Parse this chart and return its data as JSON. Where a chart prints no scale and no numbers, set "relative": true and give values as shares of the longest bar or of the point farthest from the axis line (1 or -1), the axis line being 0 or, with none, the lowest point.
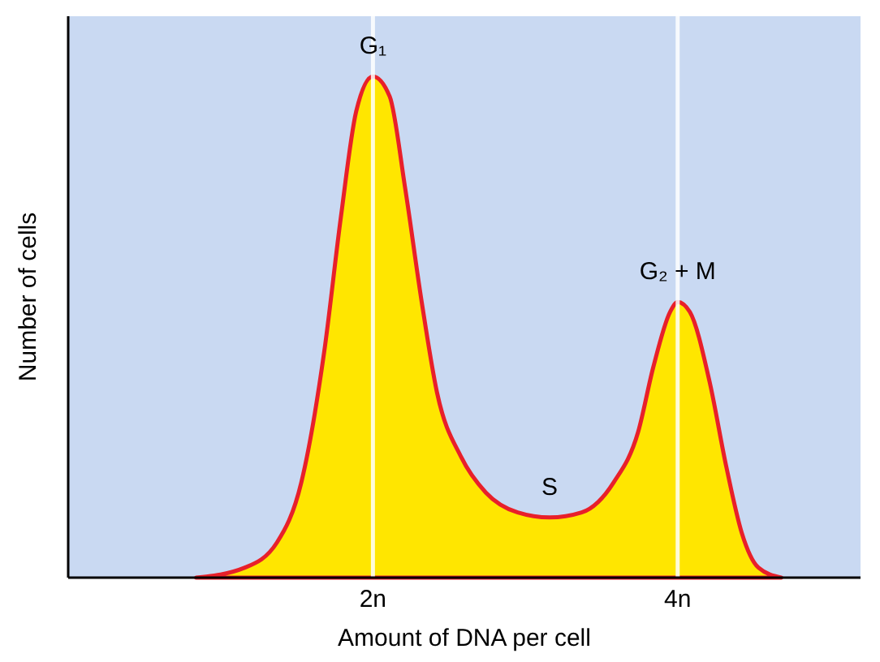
{
  "chart_data": {
    "type": "area",
    "relative": true,
    "xlabel": "Amount of DNA per cell",
    "ylabel": "Number of cells",
    "x": [
      0.84,
      1.16,
      1.37,
      1.53,
      1.68,
      1.79,
      1.89,
      2,
      2.11,
      2.21,
      2.32,
      2.42,
      2.58,
      2.74,
      2.95,
      3.16,
      3.37,
      3.58,
      3.74,
      3.84,
      3.95,
      4,
      4.08,
      4.21,
      4.32,
      4.42,
      4.53,
      4.68
    ],
    "series": [
      {
        "color": "#e8202a",
        "values": [
          0,
          0.02,
          0.07,
          0.19,
          0.45,
          0.72,
          0.93,
          1,
          0.96,
          0.78,
          0.55,
          0.37,
          0.24,
          0.17,
          0.13,
          0.12,
          0.13,
          0.19,
          0.29,
          0.42,
          0.53,
          0.55,
          0.53,
          0.39,
          0.22,
          0.09,
          0.02,
          0
        ]
      }
    ],
    "xlim": [
      0,
      5.2
    ],
    "xticks": [
      {
        "value": 2,
        "label": "2n"
      },
      {
        "value": 4,
        "label": "4n"
      }
    ],
    "ref_lines": [
      {
        "axis": "x",
        "value": 2,
        "color": "#ffffff"
      },
      {
        "axis": "x",
        "value": 4,
        "color": "#ffffff"
      }
    ],
    "annotations": [
      {
        "text": "G₁",
        "x": 2,
        "y": 1
      },
      {
        "text": "S",
        "x": 3.16,
        "y": 0.12
      },
      {
        "text": "G₂ + M",
        "x": 4,
        "y": 0.55
      }
    ],
    "line_style": "solid"
  }
}
